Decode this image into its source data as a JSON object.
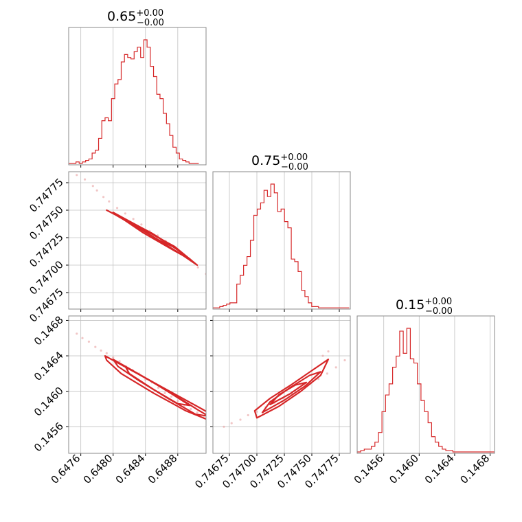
{
  "chart_data": {
    "type": "corner",
    "parameters": [
      {
        "title_value": "0.65",
        "title_upper": "+0.00",
        "title_lower": "−0.00",
        "range": [
          0.64745,
          0.64915
        ],
        "ticks": [
          0.6476,
          0.648,
          0.6484,
          0.6488
        ],
        "tick_labels": [
          "0.6476",
          "0.6480",
          "0.6484",
          "0.6488"
        ],
        "hist_bin_start": 0.64742,
        "hist_bin_width": 4e-05,
        "hist": [
          1,
          1,
          1,
          2,
          1,
          2,
          3,
          4,
          8,
          10,
          18,
          30,
          32,
          30,
          45,
          55,
          58,
          70,
          75,
          73,
          72,
          77,
          80,
          73,
          85,
          80,
          67,
          60,
          48,
          45,
          35,
          28,
          20,
          12,
          8,
          4,
          3,
          2,
          1,
          1,
          1
        ]
      },
      {
        "title_value": "0.75",
        "title_upper": "+0.00",
        "title_lower": "−0.00",
        "range": [
          0.7466,
          0.74785
        ],
        "ticks": [
          0.74675,
          0.747,
          0.74725,
          0.7475,
          0.74775
        ],
        "tick_labels": [
          "0.74675",
          "0.74700",
          "0.74725",
          "0.74750",
          "0.74775"
        ],
        "hist_bin_start": 0.7466,
        "hist_bin_width": 3.1e-05,
        "hist": [
          1,
          1,
          2,
          3,
          4,
          5,
          5,
          20,
          27,
          35,
          42,
          55,
          75,
          80,
          85,
          95,
          90,
          100,
          93,
          78,
          80,
          70,
          65,
          40,
          38,
          30,
          15,
          10,
          5,
          2,
          2,
          1,
          1,
          1,
          1,
          1,
          1,
          1,
          1,
          1
        ]
      },
      {
        "title_value": "0.15",
        "title_upper": "+0.00",
        "title_lower": "−0.00",
        "range": [
          0.1453,
          0.14685
        ],
        "ticks": [
          0.1456,
          0.146,
          0.1464,
          0.1468
        ],
        "tick_labels": [
          "0.1456",
          "0.1460",
          "0.1464",
          "0.1468"
        ],
        "hist_bin_start": 0.1453,
        "hist_bin_width": 4e-05,
        "hist": [
          1,
          2,
          3,
          3,
          5,
          8,
          15,
          30,
          42,
          50,
          62,
          70,
          88,
          72,
          90,
          68,
          65,
          50,
          38,
          30,
          22,
          12,
          8,
          5,
          3,
          2,
          2,
          1,
          1,
          1,
          1,
          1,
          1,
          1,
          1,
          1,
          1,
          1,
          1
        ]
      }
    ],
    "pairs": [
      {
        "row": 1,
        "col": 0,
        "points": [
          [
            0.64755,
            0.74782
          ],
          [
            0.64765,
            0.74778
          ],
          [
            0.64775,
            0.74772
          ],
          [
            0.6478,
            0.74768
          ],
          [
            0.64788,
            0.74762
          ],
          [
            0.64795,
            0.74758
          ],
          [
            0.64805,
            0.74752
          ],
          [
            0.64815,
            0.74747
          ],
          [
            0.64825,
            0.74742
          ],
          [
            0.64835,
            0.74737
          ],
          [
            0.64845,
            0.74731
          ],
          [
            0.64855,
            0.74727
          ],
          [
            0.64865,
            0.74722
          ],
          [
            0.64875,
            0.74716
          ],
          [
            0.64885,
            0.74711
          ],
          [
            0.64895,
            0.74705
          ],
          [
            0.64905,
            0.74698
          ],
          [
            0.64915,
            0.74692
          ],
          [
            0.64925,
            0.74687
          ],
          [
            0.64935,
            0.74681
          ],
          [
            0.64945,
            0.74677
          ]
        ],
        "contours": [
          [
            [
              0.64792,
              0.7475
            ],
            [
              0.64836,
              0.74733
            ],
            [
              0.64876,
              0.74717
            ],
            [
              0.64904,
              0.747
            ],
            [
              0.64884,
              0.7471
            ],
            [
              0.6484,
              0.7473
            ],
            [
              0.648,
              0.74747
            ]
          ],
          [
            [
              0.648,
              0.74748
            ],
            [
              0.6484,
              0.74732
            ],
            [
              0.64872,
              0.74718
            ],
            [
              0.64896,
              0.74705
            ],
            [
              0.64876,
              0.74713
            ],
            [
              0.64836,
              0.7473
            ],
            [
              0.64806,
              0.74745
            ]
          ],
          [
            [
              0.64812,
              0.74743
            ],
            [
              0.64848,
              0.74729
            ],
            [
              0.64876,
              0.74716
            ],
            [
              0.64856,
              0.74723
            ],
            [
              0.64824,
              0.74737
            ]
          ]
        ]
      },
      {
        "row": 2,
        "col": 0,
        "points": [
          [
            0.64755,
            0.14665
          ],
          [
            0.64762,
            0.1466
          ],
          [
            0.6477,
            0.14656
          ],
          [
            0.64778,
            0.1465
          ],
          [
            0.64785,
            0.14646
          ],
          [
            0.64792,
            0.14643
          ],
          [
            0.648,
            0.14638
          ],
          [
            0.64808,
            0.14634
          ],
          [
            0.64816,
            0.14628
          ],
          [
            0.64824,
            0.14624
          ],
          [
            0.64832,
            0.1462
          ],
          [
            0.6484,
            0.14613
          ],
          [
            0.64848,
            0.1461
          ],
          [
            0.64856,
            0.14604
          ],
          [
            0.64864,
            0.14598
          ],
          [
            0.64872,
            0.14594
          ],
          [
            0.6488,
            0.14589
          ],
          [
            0.64888,
            0.14584
          ],
          [
            0.64896,
            0.1458
          ],
          [
            0.64904,
            0.14576
          ],
          [
            0.64912,
            0.14572
          ],
          [
            0.6492,
            0.14568
          ],
          [
            0.64928,
            0.14564
          ],
          [
            0.64936,
            0.1456
          ],
          [
            0.64944,
            0.14556
          ],
          [
            0.64952,
            0.14552
          ],
          [
            0.6496,
            0.14548
          ],
          [
            0.64968,
            0.14543
          ],
          [
            0.64976,
            0.1454
          ],
          [
            0.64984,
            0.14536
          ],
          [
            0.64992,
            0.14533
          ],
          [
            0.64998,
            0.1453
          ]
        ],
        "contours": [
          [
            [
              0.6479,
              0.1464
            ],
            [
              0.6483,
              0.1462
            ],
            [
              0.6487,
              0.146
            ],
            [
              0.6491,
              0.1458
            ],
            [
              0.64935,
              0.14567
            ],
            [
              0.64925,
              0.14565
            ],
            [
              0.6489,
              0.14578
            ],
            [
              0.6485,
              0.14598
            ],
            [
              0.6481,
              0.1462
            ],
            [
              0.64792,
              0.14635
            ]
          ],
          [
            [
              0.648,
              0.14636
            ],
            [
              0.64838,
              0.14616
            ],
            [
              0.64872,
              0.14598
            ],
            [
              0.64905,
              0.14579
            ],
            [
              0.64918,
              0.14572
            ],
            [
              0.64902,
              0.14574
            ],
            [
              0.64868,
              0.14592
            ],
            [
              0.64832,
              0.14612
            ],
            [
              0.64806,
              0.14628
            ]
          ],
          [
            [
              0.64815,
              0.14628
            ],
            [
              0.64846,
              0.14612
            ],
            [
              0.64876,
              0.14595
            ],
            [
              0.64895,
              0.14584
            ],
            [
              0.6488,
              0.14586
            ],
            [
              0.6485,
              0.14602
            ],
            [
              0.6482,
              0.1462
            ]
          ]
        ]
      },
      {
        "row": 2,
        "col": 1,
        "points": [
          [
            0.7467,
            0.1456
          ],
          [
            0.74677,
            0.14564
          ],
          [
            0.74685,
            0.14568
          ],
          [
            0.74692,
            0.14573
          ],
          [
            0.747,
            0.14577
          ],
          [
            0.74708,
            0.14582
          ],
          [
            0.74716,
            0.14587
          ],
          [
            0.74724,
            0.14592
          ],
          [
            0.74732,
            0.14597
          ],
          [
            0.7474,
            0.14603
          ],
          [
            0.74748,
            0.14608
          ],
          [
            0.74756,
            0.14614
          ],
          [
            0.74764,
            0.1462
          ],
          [
            0.74772,
            0.14627
          ],
          [
            0.7478,
            0.14635
          ],
          [
            0.7476,
            0.1464
          ],
          [
            0.74765,
            0.14645
          ]
        ],
        "contours": [
          [
            [
              0.747,
              0.1457
            ],
            [
              0.7472,
              0.14583
            ],
            [
              0.7474,
              0.146
            ],
            [
              0.74758,
              0.14618
            ],
            [
              0.74765,
              0.14636
            ],
            [
              0.74752,
              0.14625
            ],
            [
              0.74732,
              0.14608
            ],
            [
              0.74712,
              0.14592
            ],
            [
              0.74698,
              0.14578
            ]
          ],
          [
            [
              0.74705,
              0.14576
            ],
            [
              0.74725,
              0.1459
            ],
            [
              0.74744,
              0.14606
            ],
            [
              0.74758,
              0.14622
            ],
            [
              0.74748,
              0.14618
            ],
            [
              0.7473,
              0.14604
            ],
            [
              0.74712,
              0.14588
            ]
          ],
          [
            [
              0.74712,
              0.14585
            ],
            [
              0.7473,
              0.14597
            ],
            [
              0.74745,
              0.1461
            ],
            [
              0.74735,
              0.14607
            ],
            [
              0.7472,
              0.14596
            ]
          ]
        ]
      }
    ],
    "colors": {
      "line": "#d62728",
      "contour": "#d62728",
      "scatter": "#e8a0a0",
      "grid": "#c0c0c0",
      "frame": "#888888"
    },
    "grid": true
  }
}
